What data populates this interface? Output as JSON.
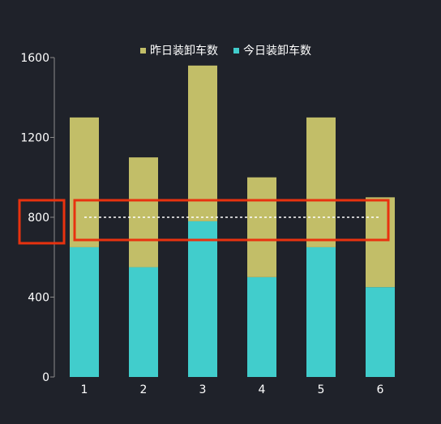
{
  "chart_data": {
    "type": "bar",
    "stacked": true,
    "categories": [
      "1",
      "2",
      "3",
      "4",
      "5",
      "6"
    ],
    "series": [
      {
        "name": "今日装卸车数",
        "values": [
          650,
          550,
          780,
          500,
          650,
          450
        ],
        "color": "#41cdcc"
      },
      {
        "name": "昨日装卸车数",
        "values": [
          650,
          550,
          780,
          500,
          650,
          450
        ],
        "color": "#c2be68"
      }
    ],
    "ylim": [
      0,
      1600
    ],
    "yticks": [
      0,
      400,
      800,
      1200,
      1600
    ],
    "reference_line": {
      "value": 800,
      "style": "dotted",
      "color": "#ffffff"
    },
    "highlight_color": "#e8320f",
    "legend": {
      "position": "top-center",
      "order": [
        "昨日装卸车数",
        "今日装卸车数"
      ]
    },
    "grid": false
  }
}
